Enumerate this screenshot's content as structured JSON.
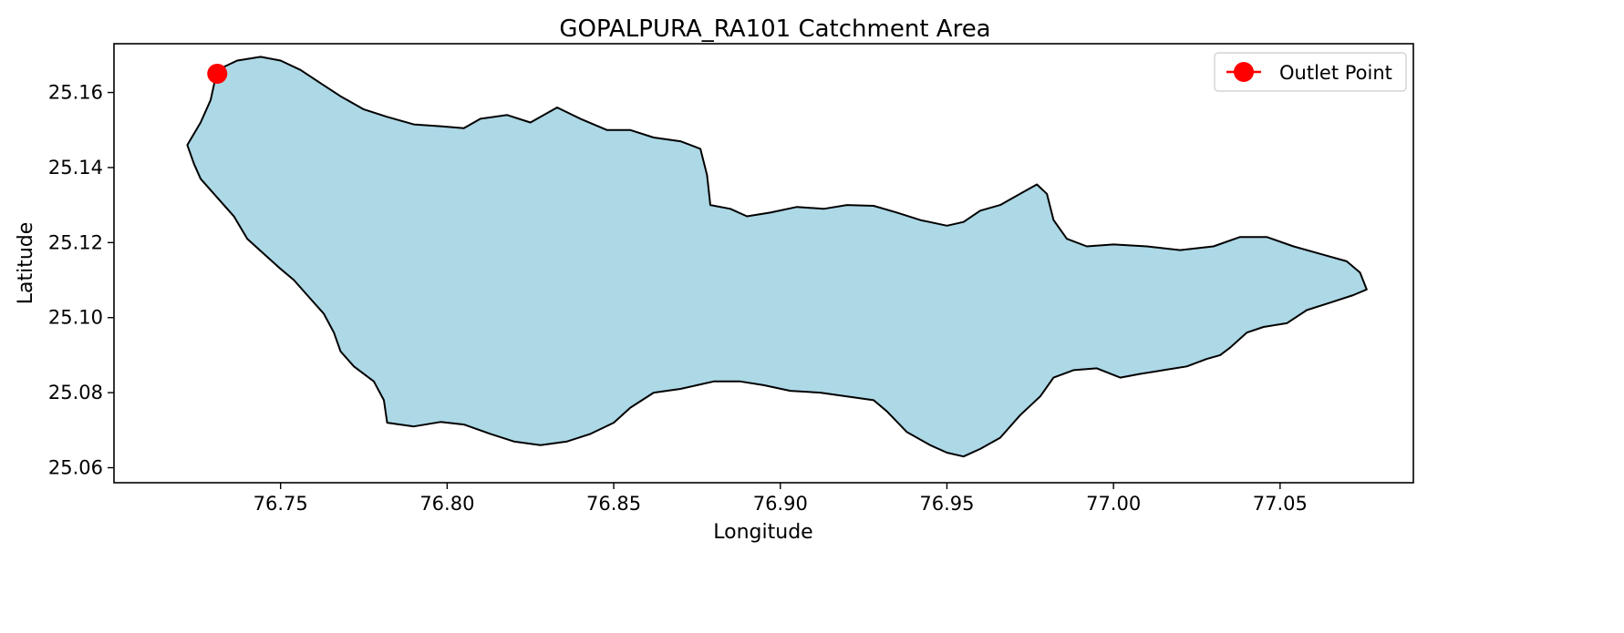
{
  "chart_data": {
    "type": "map",
    "title": "GOPALPURA_RA101 Catchment Area",
    "xlabel": "Longitude",
    "ylabel": "Latitude",
    "xlim": [
      76.7,
      77.09
    ],
    "ylim": [
      25.056,
      25.173
    ],
    "xticks": [
      76.75,
      76.8,
      76.85,
      76.9,
      76.95,
      77.0,
      77.05
    ],
    "xtick_labels": [
      "76.75",
      "76.80",
      "76.85",
      "76.90",
      "76.95",
      "77.00",
      "77.05"
    ],
    "yticks": [
      25.06,
      25.08,
      25.1,
      25.12,
      25.14,
      25.16
    ],
    "ytick_labels": [
      "25.06",
      "25.08",
      "25.10",
      "25.12",
      "25.14",
      "25.16"
    ],
    "grid": false,
    "legend": {
      "position": "top-right",
      "entries": [
        "Outlet Point"
      ]
    },
    "catchment": {
      "fill": "#add8e6",
      "edge": "#000000",
      "boundary": [
        [
          76.731,
          25.166
        ],
        [
          76.737,
          25.1685
        ],
        [
          76.744,
          25.1695
        ],
        [
          76.75,
          25.1685
        ],
        [
          76.756,
          25.166
        ],
        [
          76.762,
          25.1625
        ],
        [
          76.768,
          25.159
        ],
        [
          76.775,
          25.1555
        ],
        [
          76.782,
          25.1535
        ],
        [
          76.79,
          25.1515
        ],
        [
          76.798,
          25.151
        ],
        [
          76.805,
          25.1505
        ],
        [
          76.81,
          25.153
        ],
        [
          76.818,
          25.154
        ],
        [
          76.825,
          25.152
        ],
        [
          76.833,
          25.156
        ],
        [
          76.84,
          25.153
        ],
        [
          76.848,
          25.15
        ],
        [
          76.855,
          25.15
        ],
        [
          76.862,
          25.148
        ],
        [
          76.87,
          25.147
        ],
        [
          76.876,
          25.145
        ],
        [
          76.878,
          25.138
        ],
        [
          76.879,
          25.13
        ],
        [
          76.885,
          25.129
        ],
        [
          76.89,
          25.127
        ],
        [
          76.897,
          25.128
        ],
        [
          76.905,
          25.1295
        ],
        [
          76.913,
          25.129
        ],
        [
          76.92,
          25.13
        ],
        [
          76.928,
          25.1298
        ],
        [
          76.935,
          25.128
        ],
        [
          76.942,
          25.126
        ],
        [
          76.95,
          25.1245
        ],
        [
          76.955,
          25.1255
        ],
        [
          76.96,
          25.1285
        ],
        [
          76.966,
          25.13
        ],
        [
          76.972,
          25.133
        ],
        [
          76.977,
          25.1355
        ],
        [
          76.98,
          25.133
        ],
        [
          76.982,
          25.126
        ],
        [
          76.986,
          25.121
        ],
        [
          76.992,
          25.119
        ],
        [
          77.0,
          25.1195
        ],
        [
          77.01,
          25.119
        ],
        [
          77.02,
          25.118
        ],
        [
          77.03,
          25.119
        ],
        [
          77.038,
          25.1215
        ],
        [
          77.046,
          25.1215
        ],
        [
          77.054,
          25.119
        ],
        [
          77.062,
          25.117
        ],
        [
          77.07,
          25.115
        ],
        [
          77.074,
          25.112
        ],
        [
          77.076,
          25.1075
        ],
        [
          77.072,
          25.106
        ],
        [
          77.065,
          25.104
        ],
        [
          77.058,
          25.102
        ],
        [
          77.052,
          25.0985
        ],
        [
          77.045,
          25.0975
        ],
        [
          77.04,
          25.096
        ],
        [
          77.035,
          25.092
        ],
        [
          77.032,
          25.09
        ],
        [
          77.028,
          25.089
        ],
        [
          77.022,
          25.087
        ],
        [
          77.015,
          25.086
        ],
        [
          77.008,
          25.085
        ],
        [
          77.002,
          25.084
        ],
        [
          76.995,
          25.0865
        ],
        [
          76.988,
          25.086
        ],
        [
          76.982,
          25.084
        ],
        [
          76.978,
          25.079
        ],
        [
          76.972,
          25.074
        ],
        [
          76.966,
          25.068
        ],
        [
          76.96,
          25.065
        ],
        [
          76.955,
          25.063
        ],
        [
          76.95,
          25.064
        ],
        [
          76.945,
          25.066
        ],
        [
          76.938,
          25.0695
        ],
        [
          76.932,
          25.075
        ],
        [
          76.928,
          25.078
        ],
        [
          76.92,
          25.079
        ],
        [
          76.912,
          25.08
        ],
        [
          76.903,
          25.0805
        ],
        [
          76.895,
          25.082
        ],
        [
          76.888,
          25.083
        ],
        [
          76.88,
          25.083
        ],
        [
          76.87,
          25.081
        ],
        [
          76.862,
          25.08
        ],
        [
          76.855,
          25.076
        ],
        [
          76.85,
          25.072
        ],
        [
          76.843,
          25.069
        ],
        [
          76.836,
          25.067
        ],
        [
          76.828,
          25.066
        ],
        [
          76.82,
          25.067
        ],
        [
          76.813,
          25.069
        ],
        [
          76.805,
          25.0715
        ],
        [
          76.798,
          25.0722
        ],
        [
          76.79,
          25.071
        ],
        [
          76.782,
          25.072
        ],
        [
          76.781,
          25.078
        ],
        [
          76.778,
          25.083
        ],
        [
          76.772,
          25.087
        ],
        [
          76.768,
          25.091
        ],
        [
          76.766,
          25.096
        ],
        [
          76.763,
          25.101
        ],
        [
          76.758,
          25.106
        ],
        [
          76.754,
          25.11
        ],
        [
          76.75,
          25.113
        ],
        [
          76.745,
          25.117
        ],
        [
          76.74,
          25.121
        ],
        [
          76.736,
          25.127
        ],
        [
          76.73,
          25.133
        ],
        [
          76.726,
          25.137
        ],
        [
          76.724,
          25.141
        ],
        [
          76.722,
          25.146
        ],
        [
          76.726,
          25.152
        ],
        [
          76.729,
          25.158
        ],
        [
          76.73,
          25.162
        ]
      ]
    },
    "outlet": {
      "name": "Outlet Point",
      "lon": 76.731,
      "lat": 25.165,
      "color": "#ff0000"
    }
  }
}
